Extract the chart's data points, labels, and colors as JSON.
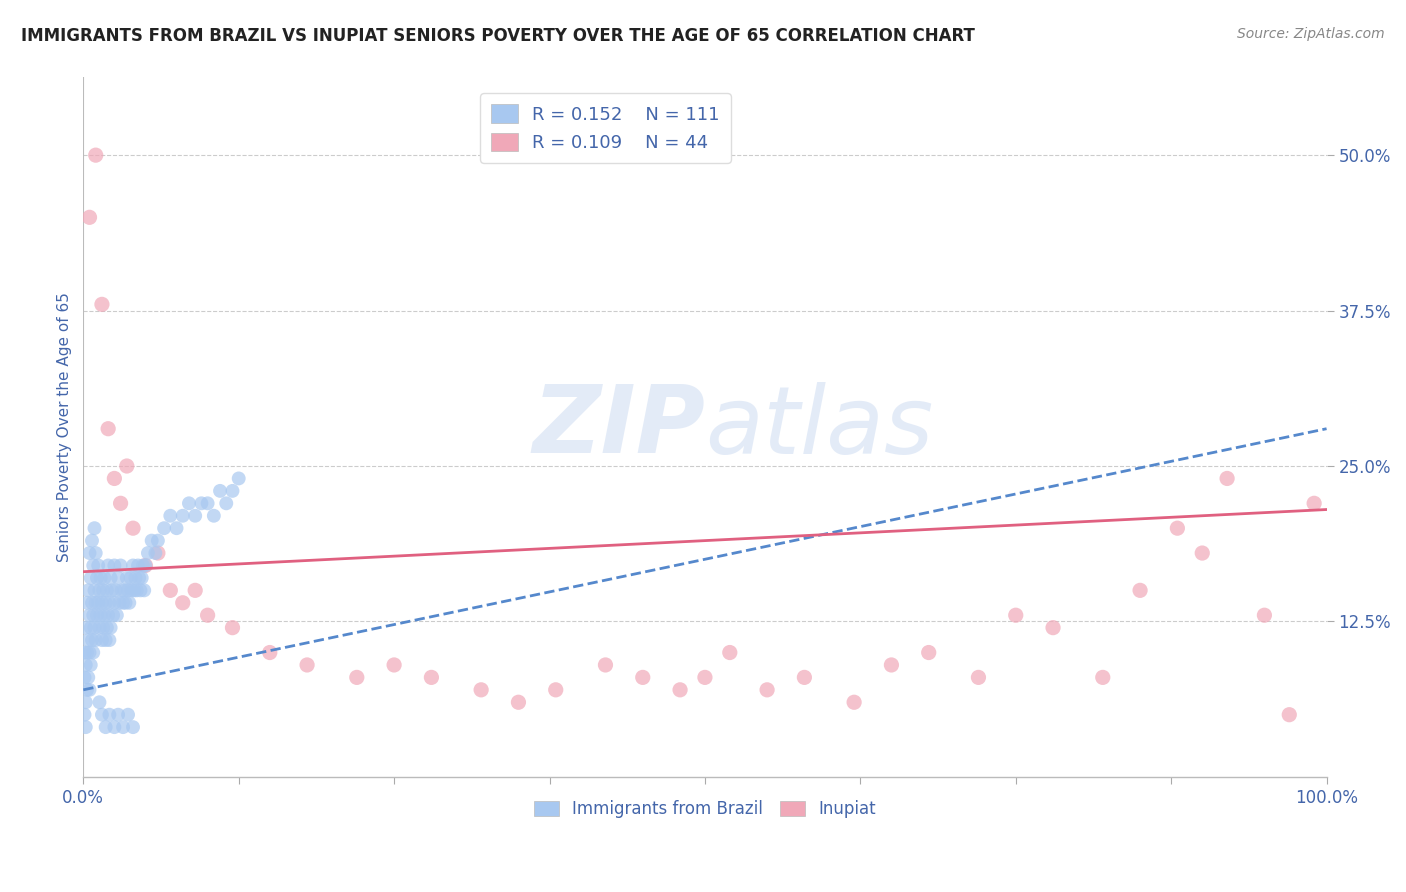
{
  "title": "IMMIGRANTS FROM BRAZIL VS INUPIAT SENIORS POVERTY OVER THE AGE OF 65 CORRELATION CHART",
  "source": "Source: ZipAtlas.com",
  "ylabel": "Seniors Poverty Over the Age of 65",
  "xlim": [
    0,
    1
  ],
  "ylim": [
    0,
    0.5625
  ],
  "xticks": [
    0.0,
    0.125,
    0.25,
    0.375,
    0.5,
    0.625,
    0.75,
    0.875,
    1.0
  ],
  "xtick_labels": [
    "0.0%",
    "",
    "",
    "",
    "",
    "",
    "",
    "",
    "100.0%"
  ],
  "yticks": [
    0.125,
    0.25,
    0.375,
    0.5
  ],
  "ytick_labels": [
    "12.5%",
    "25.0%",
    "37.5%",
    "50.0%"
  ],
  "brazil_R": 0.152,
  "brazil_N": 111,
  "inupiat_R": 0.109,
  "inupiat_N": 44,
  "brazil_color": "#a8c8f0",
  "inupiat_color": "#f0a8b8",
  "brazil_trend_color": "#5588cc",
  "inupiat_trend_color": "#e06080",
  "background_color": "#ffffff",
  "grid_color": "#cccccc",
  "title_color": "#222222",
  "axis_label_color": "#4466aa",
  "tick_label_color": "#4466aa",
  "brazil_x": [
    0.001,
    0.001,
    0.001,
    0.002,
    0.002,
    0.002,
    0.002,
    0.003,
    0.003,
    0.003,
    0.004,
    0.004,
    0.004,
    0.005,
    0.005,
    0.005,
    0.005,
    0.006,
    0.006,
    0.006,
    0.007,
    0.007,
    0.007,
    0.008,
    0.008,
    0.008,
    0.009,
    0.009,
    0.009,
    0.01,
    0.01,
    0.01,
    0.011,
    0.011,
    0.012,
    0.012,
    0.013,
    0.013,
    0.014,
    0.014,
    0.015,
    0.015,
    0.016,
    0.016,
    0.017,
    0.017,
    0.018,
    0.018,
    0.019,
    0.019,
    0.02,
    0.02,
    0.021,
    0.021,
    0.022,
    0.022,
    0.023,
    0.024,
    0.025,
    0.025,
    0.026,
    0.027,
    0.028,
    0.029,
    0.03,
    0.031,
    0.032,
    0.033,
    0.034,
    0.035,
    0.036,
    0.037,
    0.038,
    0.039,
    0.04,
    0.041,
    0.042,
    0.043,
    0.044,
    0.045,
    0.046,
    0.047,
    0.048,
    0.049,
    0.05,
    0.052,
    0.055,
    0.058,
    0.06,
    0.065,
    0.07,
    0.075,
    0.08,
    0.085,
    0.09,
    0.095,
    0.1,
    0.105,
    0.11,
    0.115,
    0.12,
    0.125,
    0.013,
    0.015,
    0.018,
    0.021,
    0.025,
    0.028,
    0.032,
    0.036,
    0.04
  ],
  "brazil_y": [
    0.1,
    0.08,
    0.05,
    0.12,
    0.09,
    0.06,
    0.04,
    0.14,
    0.1,
    0.07,
    0.15,
    0.11,
    0.08,
    0.18,
    0.13,
    0.1,
    0.07,
    0.16,
    0.12,
    0.09,
    0.19,
    0.14,
    0.11,
    0.17,
    0.13,
    0.1,
    0.2,
    0.15,
    0.12,
    0.18,
    0.14,
    0.11,
    0.16,
    0.13,
    0.17,
    0.14,
    0.15,
    0.12,
    0.16,
    0.13,
    0.14,
    0.11,
    0.15,
    0.12,
    0.16,
    0.13,
    0.14,
    0.11,
    0.15,
    0.12,
    0.17,
    0.13,
    0.14,
    0.11,
    0.16,
    0.12,
    0.15,
    0.13,
    0.17,
    0.14,
    0.15,
    0.13,
    0.16,
    0.14,
    0.17,
    0.15,
    0.14,
    0.15,
    0.14,
    0.16,
    0.15,
    0.14,
    0.16,
    0.15,
    0.17,
    0.15,
    0.16,
    0.15,
    0.17,
    0.16,
    0.15,
    0.16,
    0.17,
    0.15,
    0.17,
    0.18,
    0.19,
    0.18,
    0.19,
    0.2,
    0.21,
    0.2,
    0.21,
    0.22,
    0.21,
    0.22,
    0.22,
    0.21,
    0.23,
    0.22,
    0.23,
    0.24,
    0.06,
    0.05,
    0.04,
    0.05,
    0.04,
    0.05,
    0.04,
    0.05,
    0.04
  ],
  "inupiat_x": [
    0.005,
    0.01,
    0.015,
    0.02,
    0.025,
    0.03,
    0.035,
    0.04,
    0.05,
    0.06,
    0.07,
    0.08,
    0.09,
    0.1,
    0.12,
    0.15,
    0.18,
    0.22,
    0.25,
    0.28,
    0.32,
    0.35,
    0.38,
    0.42,
    0.45,
    0.48,
    0.5,
    0.52,
    0.55,
    0.58,
    0.62,
    0.65,
    0.68,
    0.72,
    0.75,
    0.78,
    0.82,
    0.85,
    0.88,
    0.9,
    0.92,
    0.95,
    0.97,
    0.99
  ],
  "inupiat_y": [
    0.45,
    0.5,
    0.38,
    0.28,
    0.24,
    0.22,
    0.25,
    0.2,
    0.17,
    0.18,
    0.15,
    0.14,
    0.15,
    0.13,
    0.12,
    0.1,
    0.09,
    0.08,
    0.09,
    0.08,
    0.07,
    0.06,
    0.07,
    0.09,
    0.08,
    0.07,
    0.08,
    0.1,
    0.07,
    0.08,
    0.06,
    0.09,
    0.1,
    0.08,
    0.13,
    0.12,
    0.08,
    0.15,
    0.2,
    0.18,
    0.24,
    0.13,
    0.05,
    0.22
  ],
  "brazil_trend_y_start": 0.07,
  "brazil_trend_y_end": 0.28,
  "inupiat_trend_y_start": 0.165,
  "inupiat_trend_y_end": 0.215
}
